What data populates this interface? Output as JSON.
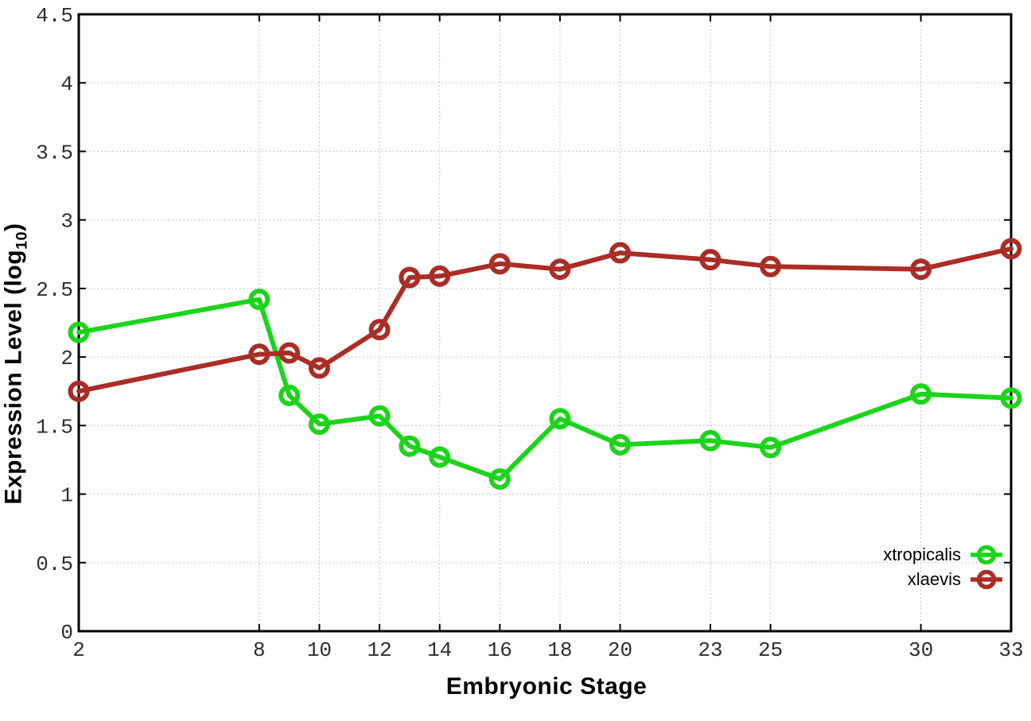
{
  "chart_data": {
    "type": "line",
    "title": "",
    "xlabel": "Embryonic Stage",
    "ylabel": "Expression Level (log10)",
    "ylabel_parts": {
      "main": "Expression Level (log",
      "sub": "10",
      "close": ")"
    },
    "xlim": [
      2,
      33
    ],
    "ylim": [
      0,
      4.5
    ],
    "xticks": [
      2,
      8,
      10,
      12,
      14,
      16,
      18,
      20,
      23,
      25,
      30,
      33
    ],
    "yticks": [
      0,
      0.5,
      1,
      1.5,
      2,
      2.5,
      3,
      3.5,
      4,
      4.5
    ],
    "grid": true,
    "legend_position": "bottom-right",
    "x": [
      2,
      8,
      9,
      10,
      12,
      13,
      14,
      16,
      18,
      20,
      23,
      25,
      30,
      33
    ],
    "series": [
      {
        "name": "xtropicalis",
        "color": "#1bd41b",
        "values": [
          2.18,
          2.42,
          1.72,
          1.51,
          1.57,
          1.35,
          1.27,
          1.11,
          1.55,
          1.36,
          1.39,
          1.34,
          1.73,
          1.7
        ]
      },
      {
        "name": "xlaevis",
        "color": "#aa2d26",
        "values": [
          1.75,
          2.02,
          2.03,
          1.92,
          2.2,
          2.58,
          2.59,
          2.68,
          2.64,
          2.76,
          2.71,
          2.66,
          2.64,
          2.79
        ]
      }
    ],
    "style": {
      "grid_color": "#b9b9b9",
      "axis_color": "#000000",
      "tick_label_color": "#2e2e2e",
      "background": "#ffffff",
      "line_width": 6,
      "marker": "open-circle"
    }
  }
}
